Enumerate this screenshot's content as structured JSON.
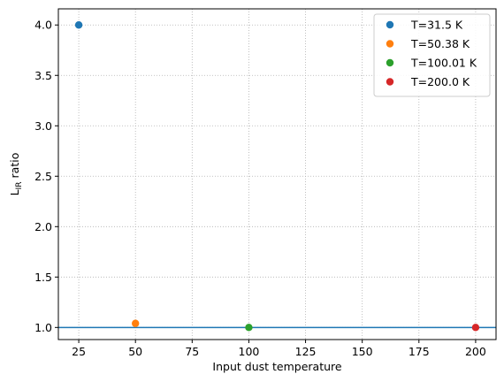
{
  "chart_data": {
    "type": "scatter",
    "title": "",
    "xlabel": "Input dust temperature",
    "ylabel_main": "L",
    "ylabel_sub": "IR",
    "ylabel_suffix": " ratio",
    "xlim": [
      16,
      209
    ],
    "ylim": [
      0.88,
      4.16
    ],
    "xticks": [
      25,
      50,
      75,
      100,
      125,
      150,
      175,
      200
    ],
    "xtick_labels": [
      "25",
      "50",
      "75",
      "100",
      "125",
      "150",
      "175",
      "200"
    ],
    "yticks": [
      1.0,
      1.5,
      2.0,
      2.5,
      3.0,
      3.5,
      4.0
    ],
    "ytick_labels": [
      "1.0",
      "1.5",
      "2.0",
      "2.5",
      "3.0",
      "3.5",
      "4.0"
    ],
    "grid": true,
    "legend_position": "top-right",
    "reference_line": {
      "y": 1.0,
      "color": "#1f77b4"
    },
    "series": [
      {
        "name": "T=31.5 K",
        "color": "#1f77b4",
        "points": [
          {
            "x": 25,
            "y": 4.0
          }
        ]
      },
      {
        "name": "T=50.38 K",
        "color": "#ff7f0e",
        "points": [
          {
            "x": 50,
            "y": 1.04
          }
        ]
      },
      {
        "name": "T=100.01 K",
        "color": "#2ca02c",
        "points": [
          {
            "x": 100,
            "y": 1.0
          }
        ]
      },
      {
        "name": "T=200.0 K",
        "color": "#d62728",
        "points": [
          {
            "x": 200,
            "y": 1.0
          }
        ]
      }
    ]
  }
}
